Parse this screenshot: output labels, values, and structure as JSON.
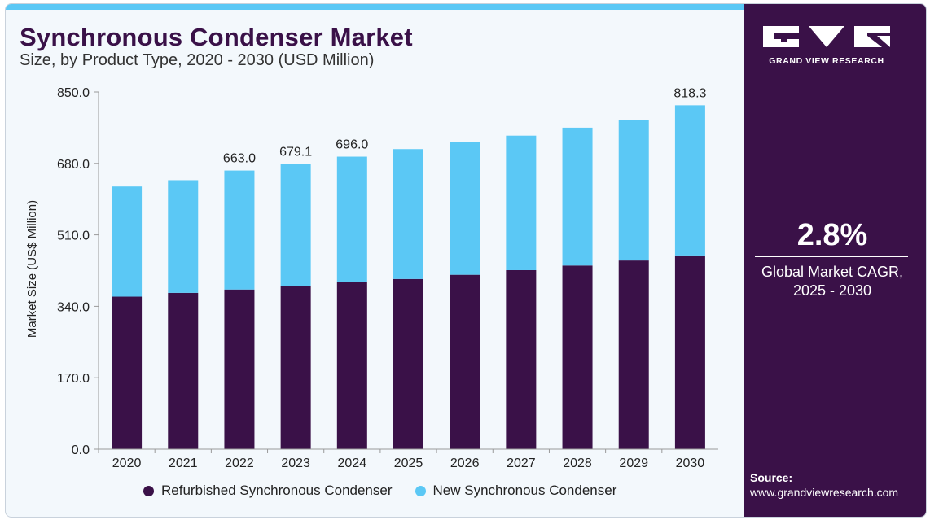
{
  "header": {
    "title": "Synchronous Condenser Market",
    "subtitle": "Size, by Product Type, 2020 - 2030 (USD Million)"
  },
  "brand": {
    "name": "GRAND VIEW RESEARCH",
    "logo_icon": "gvr-logo-icon"
  },
  "sidebar": {
    "cagr_value": "2.8%",
    "cagr_caption_line1": "Global Market CAGR,",
    "cagr_caption_line2": "2025 - 2030",
    "source_label": "Source:",
    "source_url": "www.grandviewresearch.com"
  },
  "colors": {
    "accent": "#5bc8f5",
    "brand": "#3a1148",
    "refurbished": "#3a1148",
    "new": "#5bc8f5",
    "axis": "#9a9a9a"
  },
  "chart_data": {
    "type": "bar",
    "stacked": true,
    "title": "Synchronous Condenser Market",
    "subtitle": "Size, by Product Type, 2020 - 2030 (USD Million)",
    "xlabel": "",
    "ylabel": "Market Size (US$ Million)",
    "ylim": [
      0,
      850
    ],
    "yticks": [
      "0.0",
      "170.0",
      "340.0",
      "510.0",
      "680.0",
      "850.0"
    ],
    "grid": false,
    "legend_position": "bottom",
    "categories": [
      "2020",
      "2021",
      "2022",
      "2023",
      "2024",
      "2025",
      "2026",
      "2027",
      "2028",
      "2029",
      "2030"
    ],
    "series": [
      {
        "name": "Refurbished Synchronous Condenser",
        "values": [
          363,
          372,
          380,
          388,
          397,
          405,
          415,
          426,
          437,
          449,
          461
        ]
      },
      {
        "name": "New Synchronous Condenser",
        "values": [
          262,
          268,
          283,
          291,
          299,
          309,
          316,
          320,
          328,
          335,
          357.3
        ]
      }
    ],
    "totals": [
      625,
      640,
      663.0,
      679.1,
      696.0,
      714,
      731,
      746,
      765,
      784,
      818.3
    ],
    "data_labels": {
      "2022": "663.0",
      "2023": "679.1",
      "2024": "696.0",
      "2030": "818.3"
    }
  }
}
